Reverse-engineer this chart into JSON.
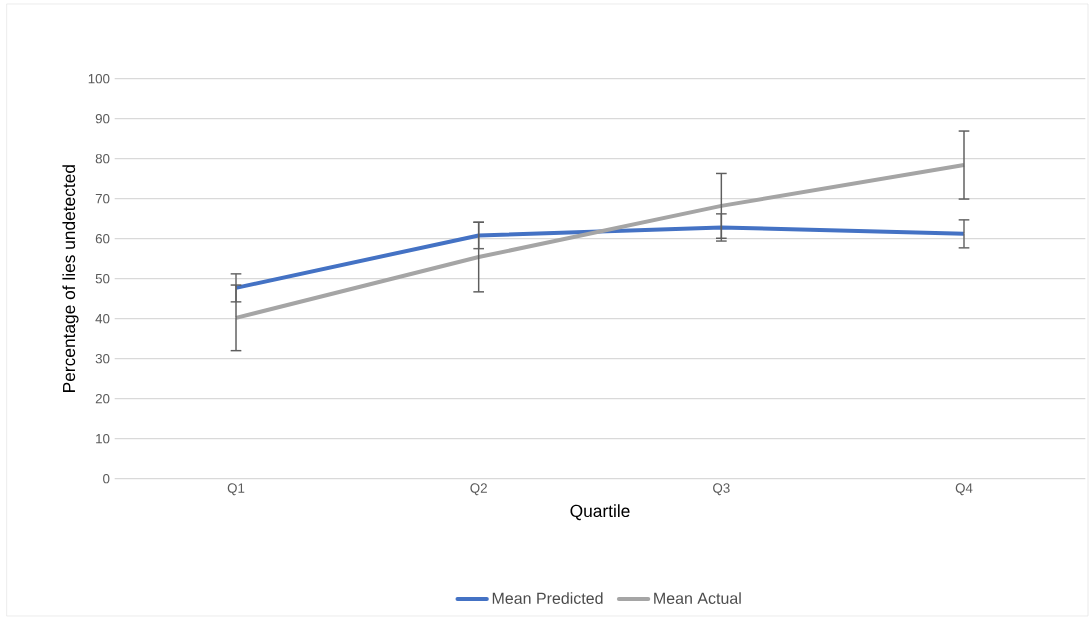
{
  "chart_data": {
    "type": "line",
    "xlabel": "Quartile",
    "ylabel": "Percentage of lies undetected",
    "categories": [
      "Q1",
      "Q2",
      "Q3",
      "Q4"
    ],
    "series": [
      {
        "name": "Mean Predicted",
        "color": "#4472c4",
        "values": [
          47.7,
          60.8,
          62.8,
          61.2
        ],
        "errors": [
          3.5,
          3.3,
          3.4,
          3.5
        ]
      },
      {
        "name": "Mean Actual",
        "color": "#a5a5a5",
        "values": [
          40.2,
          55.4,
          68.2,
          78.4
        ],
        "errors": [
          8.2,
          8.7,
          8.1,
          8.5
        ]
      }
    ],
    "ylim": [
      0,
      100
    ],
    "yticks": [
      0,
      10,
      20,
      30,
      40,
      50,
      60,
      70,
      80,
      90,
      100
    ],
    "grid": "y",
    "legend": "bottom",
    "marker": "none",
    "line_style": "solid"
  }
}
